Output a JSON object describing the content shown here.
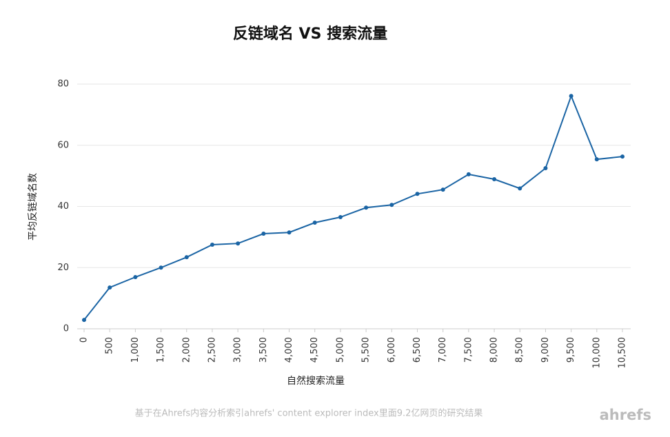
{
  "chart_data": {
    "type": "line",
    "title": "反链域名 VS 搜索流量",
    "x_label": "自然搜索流量",
    "y_label": "平均反链域名数",
    "x": [
      0,
      500,
      1000,
      1500,
      2000,
      2500,
      3000,
      3500,
      4000,
      4500,
      5000,
      5500,
      6000,
      6500,
      7000,
      7500,
      8000,
      8500,
      9000,
      9500,
      10000,
      10500
    ],
    "series": [
      {
        "name": "平均反链域名数",
        "color": "#1a64a4",
        "values": [
          2.9,
          13.5,
          16.9,
          20.0,
          23.4,
          27.5,
          27.9,
          31.1,
          31.5,
          34.7,
          36.5,
          39.6,
          40.5,
          44.1,
          45.5,
          50.5,
          48.9,
          45.9,
          52.5,
          76.1,
          55.4,
          56.3
        ]
      }
    ],
    "xlim": [
      0,
      10500
    ],
    "xticks": [
      0,
      500,
      {
        "value": 1000,
        "label": "1,000"
      },
      {
        "value": 1500,
        "label": "1,500"
      },
      {
        "value": 2000,
        "label": "2,000"
      },
      {
        "value": 2500,
        "label": "2,500"
      },
      {
        "value": 3000,
        "label": "3,000"
      },
      {
        "value": 3500,
        "label": "3,500"
      },
      {
        "value": 4000,
        "label": "4,000"
      },
      {
        "value": 4500,
        "label": "4,500"
      },
      {
        "value": 5000,
        "label": "5,000"
      },
      {
        "value": 5500,
        "label": "5,500"
      },
      {
        "value": 6000,
        "label": "6,000"
      },
      {
        "value": 6500,
        "label": "6,500"
      },
      {
        "value": 7000,
        "label": "7,000"
      },
      {
        "value": 7500,
        "label": "7,500"
      },
      {
        "value": 8000,
        "label": "8,000"
      },
      {
        "value": 8500,
        "label": "8,500"
      },
      {
        "value": 9000,
        "label": "9,000"
      },
      {
        "value": 9500,
        "label": "9,500"
      },
      {
        "value": 10000,
        "label": "10,000"
      },
      {
        "value": 10500,
        "label": "10,500"
      }
    ],
    "ylim": [
      0,
      80
    ],
    "yticks": [
      0,
      20,
      40,
      60,
      80
    ],
    "grid": true,
    "note": "基于在Ahrefs内容分析索引ahrefs' content explorer index里面9.2亿网页的研究结果",
    "brand": "ahrefs"
  }
}
